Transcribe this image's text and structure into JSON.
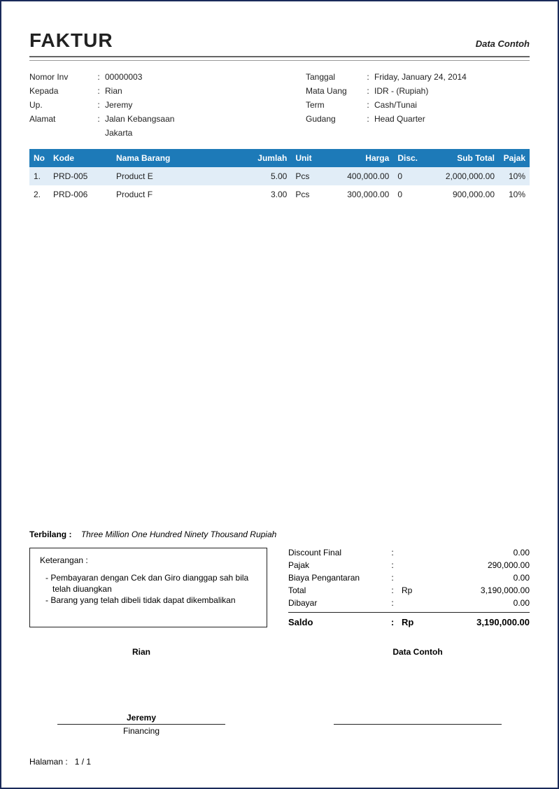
{
  "header": {
    "title": "FAKTUR",
    "subtitle": "Data Contoh"
  },
  "info_left": {
    "labels": {
      "nomor": "Nomor Inv",
      "kepada": "Kepada",
      "up": "Up.",
      "alamat": "Alamat"
    },
    "nomor": "00000003",
    "kepada": "Rian",
    "up": "Jeremy",
    "alamat1": "Jalan Kebangsaan",
    "alamat2": "Jakarta"
  },
  "info_right": {
    "labels": {
      "tanggal": "Tanggal",
      "mata_uang": "Mata Uang",
      "term": "Term",
      "gudang": "Gudang"
    },
    "tanggal": "Friday, January 24, 2014",
    "mata_uang": "IDR - (Rupiah)",
    "term": "Cash/Tunai",
    "gudang": "Head Quarter"
  },
  "table": {
    "headers": {
      "no": "No",
      "kode": "Kode",
      "nama": "Nama Barang",
      "jumlah": "Jumlah",
      "unit": "Unit",
      "harga": "Harga",
      "disc": "Disc.",
      "subtotal": "Sub Total",
      "pajak": "Pajak"
    },
    "rows": [
      {
        "no": "1.",
        "kode": "PRD-005",
        "nama": "Product E",
        "jumlah": "5.00",
        "unit": "Pcs",
        "harga": "400,000.00",
        "disc": "0",
        "subtotal": "2,000,000.00",
        "pajak": "10%"
      },
      {
        "no": "2.",
        "kode": "PRD-006",
        "nama": "Product F",
        "jumlah": "3.00",
        "unit": "Pcs",
        "harga": "300,000.00",
        "disc": "0",
        "subtotal": "900,000.00",
        "pajak": "10%"
      }
    ],
    "col_widths": [
      "28px",
      "90px",
      "auto",
      "60px",
      "46px",
      "100px",
      "40px",
      "110px",
      "44px"
    ],
    "header_bg": "#1d7ab8",
    "header_color": "#ffffff",
    "row_odd_bg": "#e1edf7",
    "row_even_bg": "#ffffff"
  },
  "terbilang": {
    "label": "Terbilang :",
    "value": "Three Million One Hundred Ninety Thousand Rupiah"
  },
  "notes": {
    "title": "Keterangan :",
    "lines": [
      "Pembayaran dengan Cek dan Giro dianggap sah bila telah diuangkan",
      "Barang yang telah dibeli tidak dapat dikembalikan"
    ]
  },
  "totals": {
    "labels": {
      "discount": "Discount Final",
      "pajak": "Pajak",
      "biaya": "Biaya Pengantaran",
      "total": "Total",
      "dibayar": "Dibayar",
      "saldo": "Saldo"
    },
    "currency": "Rp",
    "discount": "0.00",
    "pajak": "290,000.00",
    "biaya": "0.00",
    "total": "3,190,000.00",
    "dibayar": "0.00",
    "saldo": "3,190,000.00"
  },
  "signatures": {
    "left_name": "Rian",
    "left_under": "Jeremy",
    "left_role": "Financing",
    "right_name": "Data Contoh"
  },
  "footer": {
    "label": "Halaman :",
    "value": "1  /  1"
  },
  "style": {
    "page_border": "#1a2a5a",
    "font_size_body": 12,
    "font_size_title": 28
  }
}
